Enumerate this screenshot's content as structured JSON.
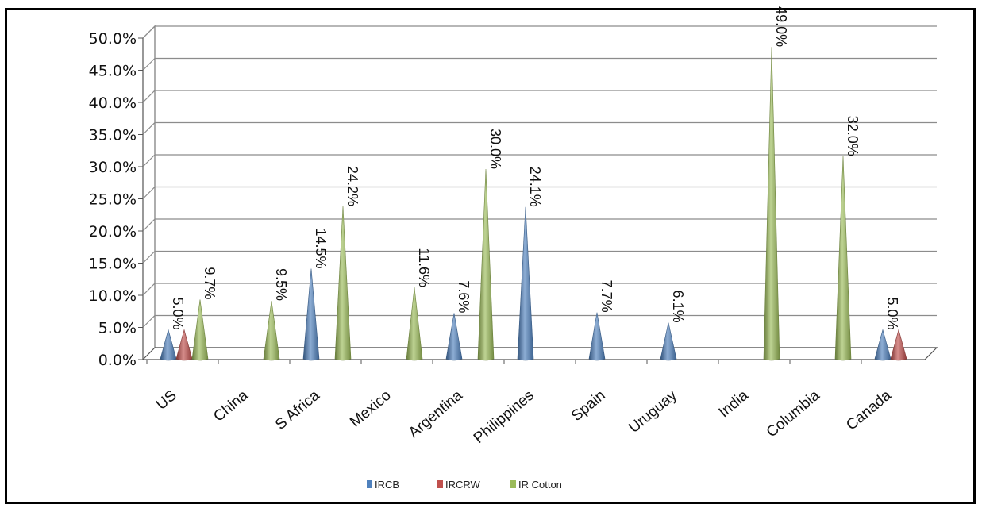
{
  "chart_data": {
    "type": "bar",
    "style": "3d-cone",
    "categories": [
      "US",
      "China",
      "S Africa",
      "Mexico",
      "Argentina",
      "Philippines",
      "Spain",
      "Uruguay",
      "India",
      "Columbia",
      "Canada"
    ],
    "series": [
      {
        "name": "IRCB",
        "color": "#4f81bd",
        "values": [
          5.0,
          null,
          14.5,
          null,
          7.6,
          24.1,
          7.7,
          6.1,
          null,
          null,
          5.0
        ],
        "labels": [
          "5.0%",
          "",
          "14.5%",
          "",
          "7.6%",
          "24.1%",
          "7.7%",
          "6.1%",
          "",
          "",
          "5.0%"
        ]
      },
      {
        "name": "IRCRW",
        "color": "#c0504d",
        "values": [
          5.0,
          null,
          null,
          null,
          null,
          null,
          null,
          null,
          null,
          null,
          5.0
        ],
        "labels": [
          "",
          "",
          "",
          "",
          "",
          "",
          "",
          "",
          "",
          "",
          ""
        ]
      },
      {
        "name": "IR Cotton",
        "color": "#9bbb59",
        "values": [
          9.7,
          9.5,
          24.2,
          11.6,
          30.0,
          null,
          null,
          null,
          49.0,
          32.0,
          null
        ],
        "labels": [
          "9.7%",
          "9.5%",
          "24.2%",
          "11.6%",
          "30.0%",
          "",
          "",
          "",
          "49.0%",
          "32.0%",
          ""
        ]
      }
    ],
    "yticks": [
      "0.0%",
      "5.0%",
      "10.0%",
      "15.0%",
      "20.0%",
      "25.0%",
      "30.0%",
      "35.0%",
      "40.0%",
      "45.0%",
      "50.0%"
    ],
    "ylim": [
      0,
      50
    ],
    "grid": true,
    "legend_position": "bottom"
  }
}
